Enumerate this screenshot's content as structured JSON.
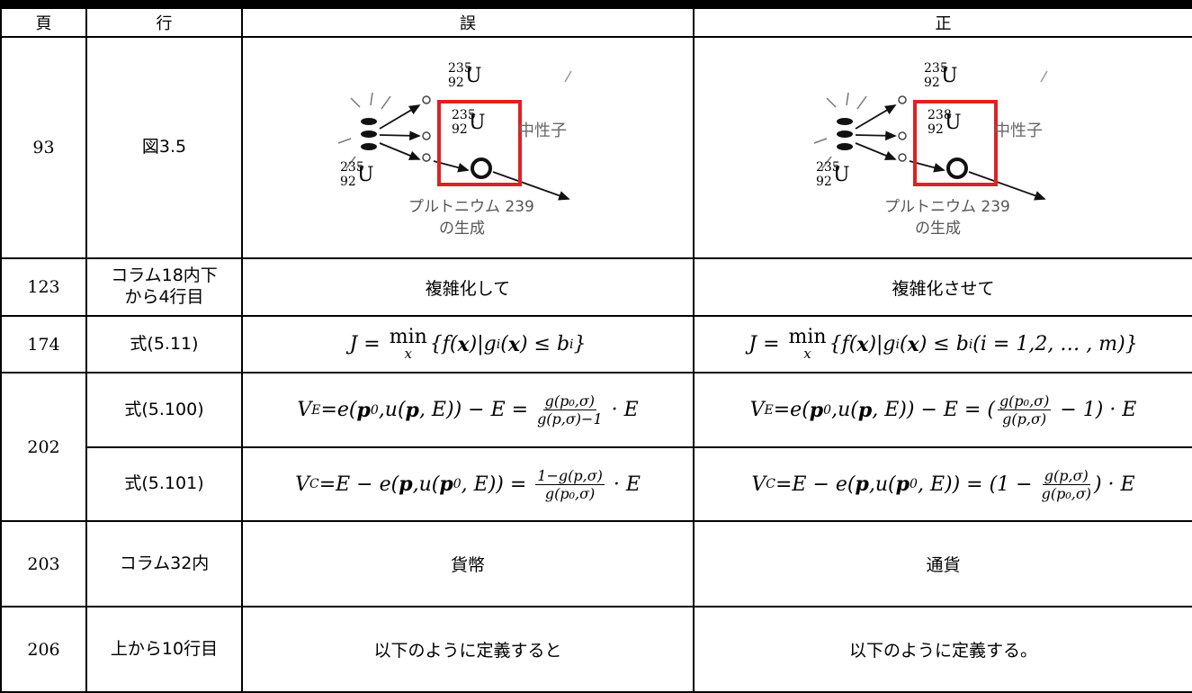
{
  "table": {
    "header": [
      "頁",
      "行",
      "誤",
      "正"
    ],
    "rows": [
      {
        "page": "93",
        "line": [
          "図3.5"
        ],
        "wrong": {
          "figure": {
            "top": {
              "mass": "235",
              "atomic": "92",
              "symbol": "U"
            },
            "boxed": {
              "mass": "235",
              "atomic": "92",
              "symbol": "U"
            },
            "left": {
              "mass": "235",
              "atomic": "92",
              "symbol": "U"
            },
            "neutron": "中性子",
            "product": "プルトニウム 239",
            "product2": "の生成"
          }
        },
        "right": {
          "figure": {
            "top": {
              "mass": "235",
              "atomic": "92",
              "symbol": "U"
            },
            "boxed": {
              "mass": "238",
              "atomic": "92",
              "symbol": "U"
            },
            "left": {
              "mass": "235",
              "atomic": "92",
              "symbol": "U"
            },
            "neutron": "中性子",
            "product": "プルトニウム 239",
            "product2": "の生成"
          }
        }
      },
      {
        "page": "123",
        "line": [
          "コラム18内下",
          "から4行目"
        ],
        "wrong": "複雑化して",
        "right": "複雑化させて"
      },
      {
        "page": "174",
        "line": [
          "式(5.11)"
        ],
        "wrong": [
          "J = ",
          {
            "op": "min",
            "below": "x"
          },
          "{f(",
          {
            "b": "x"
          },
          ")|g",
          {
            "sub": "i"
          },
          "(",
          {
            "b": "x"
          },
          ") ≤ b",
          {
            "sub": "i"
          },
          "}"
        ],
        "right": [
          "J = ",
          {
            "op": "min",
            "below": "x"
          },
          "{f(",
          {
            "b": "x"
          },
          ")|g",
          {
            "sub": "i"
          },
          "(",
          {
            "b": "x"
          },
          ") ≤ b",
          {
            "sub": "i"
          },
          "(i = 1,2, … , m)}"
        ]
      },
      {
        "page": "202",
        "subrows": [
          {
            "line": [
              "式(5.100)"
            ],
            "wrong": [
              "V",
              {
                "sub": "E"
              },
              "=e(",
              {
                "b": "p"
              },
              {
                "sub": "0"
              },
              ",u(",
              {
                "b": "p"
              },
              ", E)) − E = ",
              {
                "num": "g(p₀,σ)",
                "den": "g(p,σ)−1"
              },
              " · E"
            ],
            "right": [
              "V",
              {
                "sub": "E"
              },
              "=e(",
              {
                "b": "p"
              },
              {
                "sub": "0"
              },
              ",u(",
              {
                "b": "p"
              },
              ", E)) − E = (",
              {
                "num": "g(p₀,σ)",
                "den": "g(p,σ)"
              },
              " − 1) · E"
            ]
          },
          {
            "line": [
              "式(5.101)"
            ],
            "wrong": [
              "V",
              {
                "sub": "C"
              },
              "=E − e(",
              {
                "b": "p"
              },
              ",u(",
              {
                "b": "p"
              },
              {
                "sub": "0"
              },
              ", E)) = ",
              {
                "num": "1−g(p,σ)",
                "den": "g(p₀,σ)"
              },
              " · E"
            ],
            "right": [
              "V",
              {
                "sub": "C"
              },
              "=E − e(",
              {
                "b": "p"
              },
              ",u(",
              {
                "b": "p"
              },
              {
                "sub": "0"
              },
              ", E)) = (1 − ",
              {
                "num": "g(p,σ)",
                "den": "g(p₀,σ)"
              },
              ") · E"
            ]
          }
        ]
      },
      {
        "page": "203",
        "line": [
          "コラム32内"
        ],
        "wrong": "貨幣",
        "right": "通貨"
      },
      {
        "page": "206",
        "line": [
          "上から10行目"
        ],
        "wrong": "以下のように定義すると",
        "right": "以下のように定義する。"
      }
    ]
  }
}
